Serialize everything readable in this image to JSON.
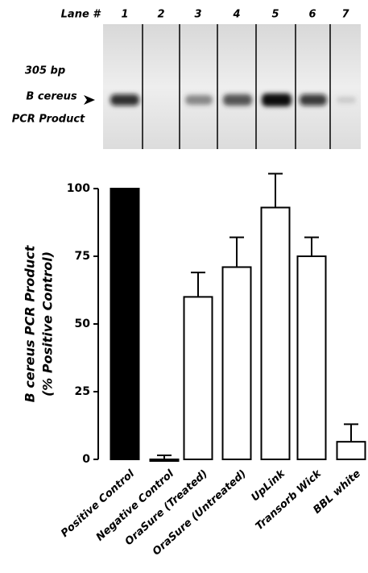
{
  "gel": {
    "lane_header": "Lane #",
    "lanes": [
      "1",
      "2",
      "3",
      "4",
      "5",
      "6",
      "7"
    ],
    "labels": [
      "305 bp",
      "B cereus",
      "PCR Product"
    ]
  },
  "chart_data": {
    "type": "bar",
    "y_label": [
      "B cereus PCR Product",
      "(% Positive Control)"
    ],
    "categories": [
      "Positive Control",
      "Negative Control",
      "OraSure (Treated)",
      "OraSure (Untreated)",
      "UpLink",
      "Transorb Wick",
      "BBL white"
    ],
    "values": [
      100,
      0,
      60,
      71,
      93,
      75,
      6.5
    ],
    "errors": [
      null,
      1.5,
      9,
      11,
      12.5,
      7,
      6.5
    ],
    "colors": [
      "#000000",
      "#ffffff",
      "#ffffff",
      "#ffffff",
      "#ffffff",
      "#ffffff",
      "#ffffff"
    ],
    "ylim": [
      0,
      100
    ],
    "yticks": [
      0,
      25,
      50,
      75,
      100
    ]
  }
}
